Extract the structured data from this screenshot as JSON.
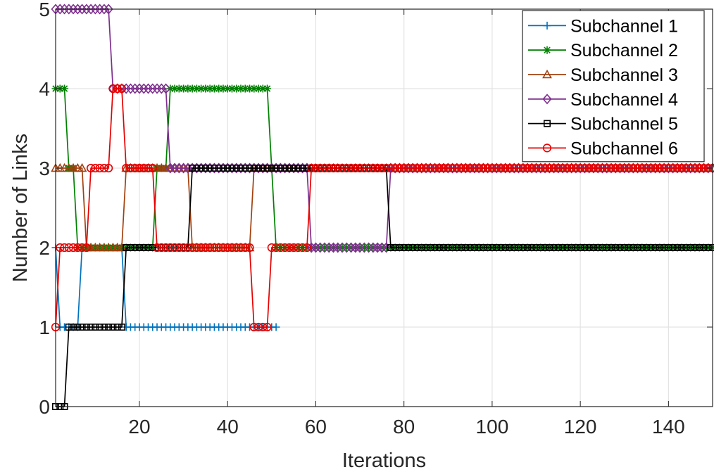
{
  "chart_data": {
    "type": "line",
    "xlabel": "Iterations",
    "ylabel": "Number of Links",
    "xlim": [
      1,
      150
    ],
    "ylim": [
      0,
      5
    ],
    "xticks": [
      20,
      40,
      60,
      80,
      100,
      120,
      140
    ],
    "yticks": [
      0,
      1,
      2,
      3,
      4,
      5
    ],
    "grid": true,
    "legend_position": "top-right",
    "series": [
      {
        "name": "Subchannel 1",
        "color": "#0072BD",
        "marker": "plus",
        "segments": [
          [
            1,
            2
          ],
          [
            2,
            1
          ],
          [
            6,
            1
          ],
          [
            7,
            2
          ],
          [
            16,
            2
          ],
          [
            17,
            1
          ],
          [
            51,
            1
          ]
        ]
      },
      {
        "name": "Subchannel 2",
        "color": "#008000",
        "marker": "asterisk",
        "segments": [
          [
            1,
            4
          ],
          [
            3,
            4
          ],
          [
            4,
            3
          ],
          [
            5,
            3
          ],
          [
            6,
            2
          ],
          [
            23,
            2
          ],
          [
            24,
            3
          ],
          [
            26,
            3
          ],
          [
            27,
            4
          ],
          [
            49,
            4
          ],
          [
            50,
            3
          ],
          [
            51,
            2
          ],
          [
            150,
            2
          ]
        ]
      },
      {
        "name": "Subchannel 3",
        "color": "#A2400E",
        "marker": "triangle",
        "segments": [
          [
            1,
            3
          ],
          [
            7,
            3
          ],
          [
            8,
            2
          ],
          [
            16,
            2
          ],
          [
            17,
            3
          ],
          [
            31,
            3
          ],
          [
            32,
            2
          ],
          [
            45,
            2
          ],
          [
            46,
            3
          ],
          [
            150,
            3
          ]
        ]
      },
      {
        "name": "Subchannel 4",
        "color": "#7E2F8E",
        "marker": "diamond",
        "segments": [
          [
            1,
            5
          ],
          [
            13,
            5
          ],
          [
            14,
            4
          ],
          [
            26,
            4
          ],
          [
            27,
            3
          ],
          [
            58,
            3
          ],
          [
            59,
            2
          ],
          [
            76,
            2
          ],
          [
            77,
            3
          ],
          [
            150,
            3
          ]
        ]
      },
      {
        "name": "Subchannel 5",
        "color": "#000000",
        "marker": "square",
        "segments": [
          [
            1,
            0
          ],
          [
            3,
            0
          ],
          [
            4,
            1
          ],
          [
            16,
            1
          ],
          [
            17,
            2
          ],
          [
            31,
            2
          ],
          [
            32,
            3
          ],
          [
            76,
            3
          ],
          [
            77,
            2
          ],
          [
            150,
            2
          ]
        ]
      },
      {
        "name": "Subchannel 6",
        "color": "#E60000",
        "marker": "circle",
        "segments": [
          [
            1,
            1
          ],
          [
            2,
            2
          ],
          [
            8,
            2
          ],
          [
            9,
            3
          ],
          [
            13,
            3
          ],
          [
            14,
            4
          ],
          [
            16,
            4
          ],
          [
            17,
            3
          ],
          [
            23,
            3
          ],
          [
            24,
            2
          ],
          [
            45,
            2
          ],
          [
            46,
            1
          ],
          [
            49,
            1
          ],
          [
            50,
            2
          ],
          [
            58,
            2
          ],
          [
            59,
            3
          ],
          [
            150,
            3
          ]
        ]
      }
    ]
  }
}
